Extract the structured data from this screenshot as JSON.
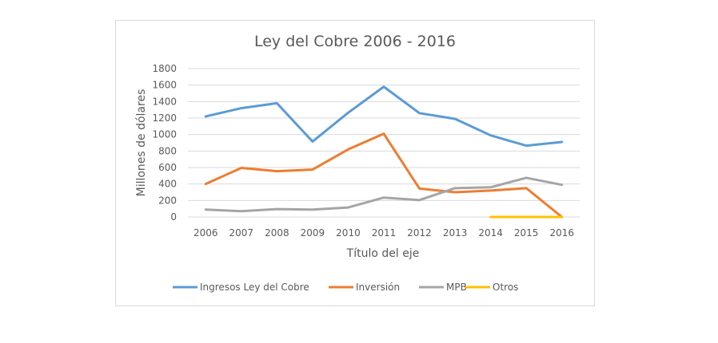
{
  "chart_data": {
    "type": "line",
    "title": "Ley del Cobre 2006 - 2016",
    "xlabel": "Título del eje",
    "ylabel": "Millones de dólares",
    "categories": [
      "2006",
      "2007",
      "2008",
      "2009",
      "2010",
      "2011",
      "2012",
      "2013",
      "2014",
      "2015",
      "2016"
    ],
    "ylim": [
      0,
      1800
    ],
    "yticks": [
      0,
      200,
      400,
      600,
      800,
      1000,
      1200,
      1400,
      1600,
      1800
    ],
    "ytick_labels": [
      "0",
      "200",
      "400",
      "600",
      "800",
      "1000",
      "1200",
      "1400",
      "1600",
      "1800"
    ],
    "grid": true,
    "legend_position": "bottom",
    "series": [
      {
        "name": "Ingresos Ley del Cobre",
        "color": "#5b9bd5",
        "values": [
          1220,
          1320,
          1380,
          915,
          1265,
          1580,
          1260,
          1190,
          990,
          865,
          910
        ]
      },
      {
        "name": "Inversión",
        "color": "#ed7d31",
        "values": [
          400,
          595,
          555,
          575,
          820,
          1010,
          345,
          300,
          320,
          350,
          0
        ]
      },
      {
        "name": "MPB",
        "color": "#a5a5a5",
        "values": [
          90,
          70,
          95,
          90,
          115,
          235,
          205,
          350,
          360,
          475,
          390
        ]
      },
      {
        "name": "Otros",
        "color": "#ffc000",
        "values": [
          null,
          null,
          null,
          null,
          null,
          null,
          null,
          null,
          0,
          0,
          0
        ]
      }
    ]
  }
}
